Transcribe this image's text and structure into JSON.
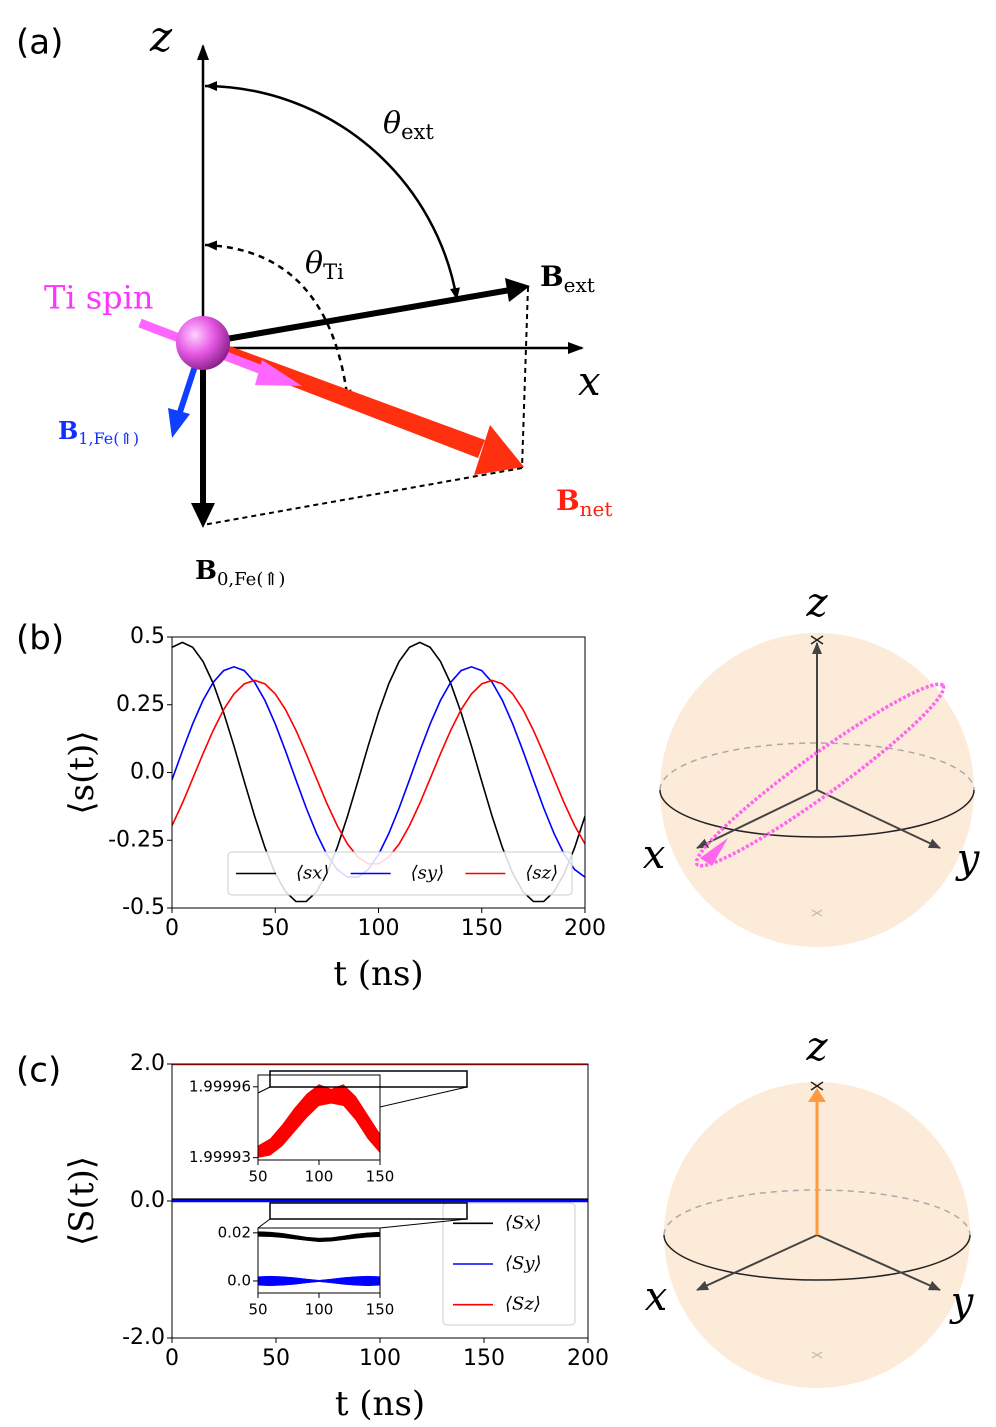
{
  "panel_labels": [
    "(a)",
    "(b)",
    "(c)"
  ],
  "diagram": {
    "z_axis": "z",
    "x_axis": "x",
    "theta_ext": {
      "main": "θ",
      "sub": "ext"
    },
    "theta_ti": {
      "main": "θ",
      "sub": "Ti"
    },
    "ti_spin": "Ti spin",
    "b_ext": {
      "main": "B",
      "sub": "ext"
    },
    "b_net": {
      "main": "B",
      "sub": "net"
    },
    "b1": {
      "main": "B",
      "sub": "1,Fe(⇑)"
    },
    "b0": {
      "main": "B",
      "sub": "0,Fe(⇑)"
    }
  },
  "bloch_b": {
    "z": "z",
    "x": "x",
    "y": "y"
  },
  "bloch_c": {
    "z": "z",
    "x": "x",
    "y": "y"
  },
  "chart_data": [
    {
      "type": "line",
      "ylabel": "⟨s(t)⟩",
      "xlabel": "t (ns)",
      "legend": "lower center",
      "x": [
        0,
        5,
        10,
        15,
        20,
        25,
        30,
        35,
        40,
        45,
        50,
        55,
        60,
        65,
        70,
        75,
        80,
        85,
        90,
        95,
        100,
        105,
        110,
        115,
        120,
        125,
        130,
        135,
        140,
        145,
        150,
        155,
        160,
        165,
        170,
        175,
        180,
        185,
        190,
        195,
        200
      ],
      "series": [
        {
          "name": "⟨sx⟩",
          "color": "#000000",
          "values": [
            0.462,
            0.48,
            0.462,
            0.41,
            0.328,
            0.221,
            0.098,
            -0.033,
            -0.161,
            -0.277,
            -0.372,
            -0.44,
            -0.476,
            -0.476,
            -0.44,
            -0.372,
            -0.277,
            -0.161,
            -0.033,
            0.098,
            0.221,
            0.328,
            0.41,
            0.462,
            0.48,
            0.462,
            0.41,
            0.328,
            0.221,
            0.098,
            -0.033,
            -0.161,
            -0.277,
            -0.372,
            -0.44,
            -0.476,
            -0.476,
            -0.44,
            -0.372,
            -0.277,
            -0.161
          ]
        },
        {
          "name": "⟨sy⟩",
          "color": "#0000ff",
          "values": [
            -0.027,
            0.079,
            0.179,
            0.266,
            0.333,
            0.376,
            0.39,
            0.376,
            0.333,
            0.266,
            0.179,
            0.079,
            -0.027,
            -0.131,
            -0.225,
            -0.303,
            -0.358,
            -0.386,
            -0.386,
            -0.358,
            -0.303,
            -0.225,
            -0.131,
            -0.027,
            0.079,
            0.179,
            0.266,
            0.333,
            0.376,
            0.39,
            0.376,
            0.333,
            0.266,
            0.179,
            0.079,
            -0.027,
            -0.131,
            -0.225,
            -0.303,
            -0.358,
            -0.386
          ]
        },
        {
          "name": "⟨sz⟩",
          "color": "#ff0000",
          "values": [
            -0.196,
            -0.114,
            -0.023,
            0.069,
            0.156,
            0.232,
            0.29,
            0.327,
            0.34,
            0.327,
            0.29,
            0.232,
            0.156,
            0.069,
            -0.023,
            -0.114,
            -0.196,
            -0.264,
            -0.312,
            -0.337,
            -0.337,
            -0.312,
            -0.264,
            -0.196,
            -0.114,
            -0.023,
            0.069,
            0.156,
            0.232,
            0.29,
            0.327,
            0.34,
            0.327,
            0.29,
            0.232,
            0.156,
            0.069,
            -0.023,
            -0.114,
            -0.196,
            -0.264
          ]
        }
      ],
      "xlim": [
        0,
        200
      ],
      "xticks": [
        0,
        50,
        100,
        150,
        200
      ],
      "ylim": [
        -0.5,
        0.5
      ],
      "yticks": [
        0.5,
        0.25,
        {
          "value": 0,
          "label": "0.0"
        },
        -0.25,
        -0.5
      ]
    },
    {
      "type": "line",
      "ylabel": "⟨S(t)⟩",
      "xlabel": "t (ns)",
      "legend": "lower right",
      "x": [
        0,
        200
      ],
      "series": [
        {
          "name": "⟨Sx⟩",
          "color": "#000000",
          "values": [
            0.02,
            0.02
          ]
        },
        {
          "name": "⟨Sy⟩",
          "color": "#0000ff",
          "values": [
            0,
            0
          ]
        },
        {
          "name": "⟨Sz⟩",
          "color": "#ff0000",
          "values": [
            2,
            2
          ]
        }
      ],
      "xlim": [
        0,
        200
      ],
      "xticks": [
        0,
        50,
        100,
        150,
        200
      ],
      "ylim": [
        -2,
        2
      ],
      "yticks": [
        {
          "value": 2,
          "label": "2.0"
        },
        {
          "value": 0,
          "label": "0.0"
        },
        {
          "value": -2,
          "label": "-2.0"
        }
      ]
    },
    {
      "type": "band",
      "x": [
        50,
        60,
        70,
        80,
        90,
        100,
        110,
        120,
        130,
        140,
        150
      ],
      "series": [
        {
          "color": "#ff0000",
          "upper": [
            1.999935,
            1.999938,
            1.999944,
            1.999951,
            1.999957,
            1.999961,
            1.999959,
            1.999961,
            1.999956,
            1.999948,
            1.99994
          ],
          "lower": [
            1.99993,
            1.999931,
            1.999935,
            1.999941,
            1.999947,
            1.999952,
            1.999953,
            1.999952,
            1.999946,
            1.999938,
            1.999932
          ]
        }
      ],
      "xlim": [
        50,
        150
      ],
      "xticks": [
        50,
        100,
        150
      ],
      "ylim": [
        1.999929,
        1.999965
      ],
      "yticks": [
        1.99996,
        1.99993
      ]
    },
    {
      "type": "band",
      "x": [
        50,
        60,
        70,
        80,
        90,
        100,
        110,
        120,
        130,
        140,
        150
      ],
      "series": [
        {
          "color": "#000000",
          "upper": [
            0.0205,
            0.0203,
            0.0198,
            0.019,
            0.0182,
            0.0178,
            0.018,
            0.0187,
            0.0195,
            0.02,
            0.0203
          ],
          "lower": [
            0.0185,
            0.0184,
            0.018,
            0.0174,
            0.0168,
            0.0163,
            0.0165,
            0.0171,
            0.0177,
            0.0182,
            0.0184
          ]
        },
        {
          "color": "#0000ff",
          "upper": [
            0.0018,
            0.002,
            0.0018,
            0.0014,
            0.0008,
            0.0003,
            0.0008,
            0.0014,
            0.0018,
            0.002,
            0.0018
          ],
          "lower": [
            -0.0018,
            -0.002,
            -0.0018,
            -0.0014,
            -0.0008,
            -0.0003,
            -0.0008,
            -0.0014,
            -0.0018,
            -0.002,
            -0.0018
          ]
        }
      ],
      "xlim": [
        50,
        150
      ],
      "xticks": [
        50,
        100,
        150
      ],
      "ylim": [
        -0.005,
        0.022
      ],
      "yticks": [
        0.02,
        {
          "value": 0,
          "label": "0.0"
        }
      ]
    }
  ]
}
